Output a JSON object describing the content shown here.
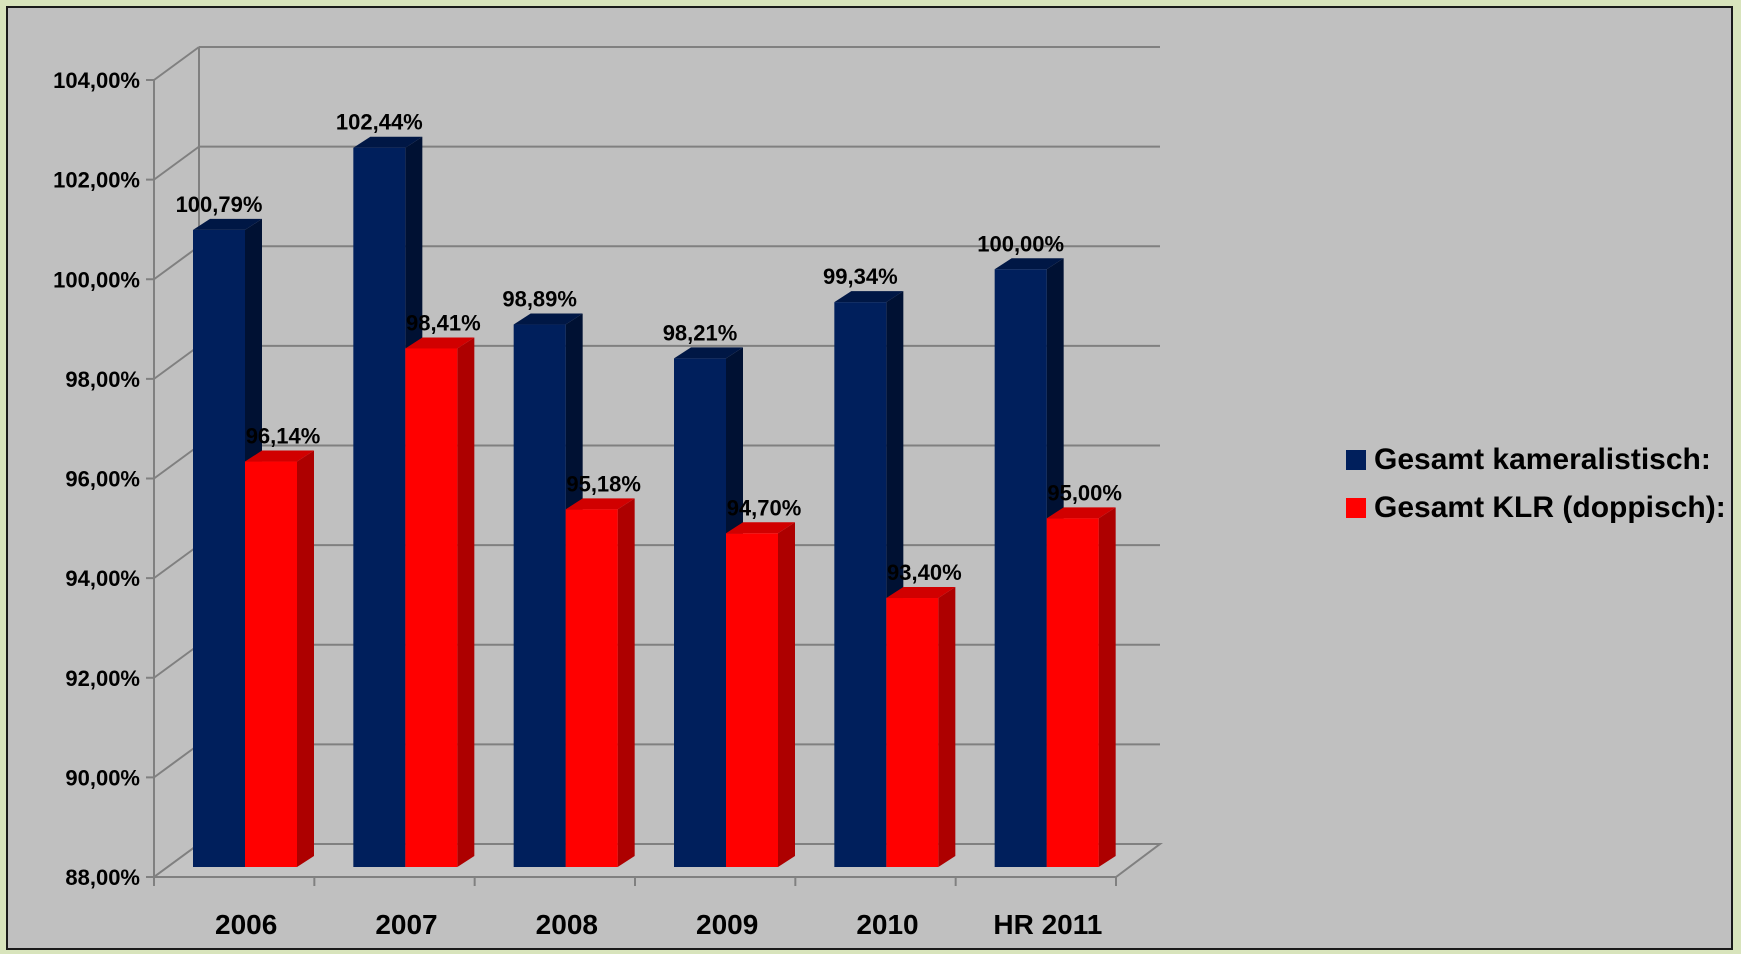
{
  "chart_data": {
    "type": "bar",
    "categories": [
      "2006",
      "2007",
      "2008",
      "2009",
      "2010",
      "HR 2011"
    ],
    "series": [
      {
        "name": "Gesamt kameralistisch:",
        "color": "#001f5c",
        "values": [
          100.79,
          102.44,
          98.89,
          98.21,
          99.34,
          100.0
        ],
        "labels": [
          "100,79%",
          "102,44%",
          "98,89%",
          "98,21%",
          "99,34%",
          "100,00%"
        ]
      },
      {
        "name": "Gesamt KLR (doppisch):",
        "color": "#ff0000",
        "values": [
          96.14,
          98.41,
          95.18,
          94.7,
          93.4,
          95.0
        ],
        "labels": [
          "96,14%",
          "98,41%",
          "95,18%",
          "94,70%",
          "93,40%",
          "95,00%"
        ]
      }
    ],
    "ylim": [
      88,
      104
    ],
    "yticks": [
      "88,00%",
      "90,00%",
      "92,00%",
      "94,00%",
      "96,00%",
      "98,00%",
      "100,00%",
      "102,00%",
      "104,00%"
    ],
    "grid": true,
    "legend_position": "right",
    "style": "3d"
  }
}
